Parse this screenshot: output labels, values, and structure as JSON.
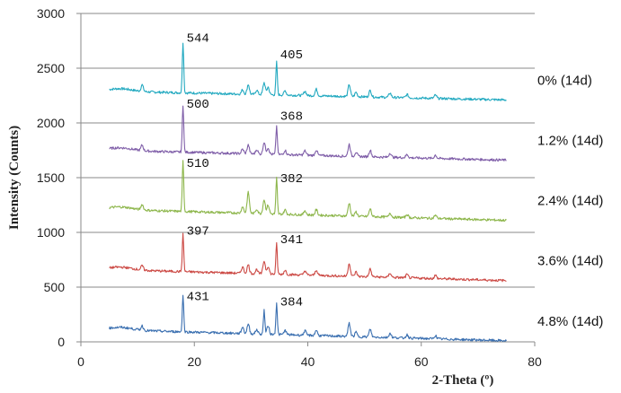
{
  "chart_data": {
    "type": "line",
    "title": "",
    "xlabel": "2-Theta (º)",
    "ylabel": "Intensity (Counts)",
    "xlim": [
      0,
      80
    ],
    "ylim": [
      0,
      3000
    ],
    "xticks": [
      "0",
      "20",
      "40",
      "60",
      "80"
    ],
    "yticks": [
      "0",
      "500",
      "1000",
      "1500",
      "2000",
      "2500",
      "3000"
    ],
    "grid": "horizontal",
    "legend_position": "right",
    "series": [
      {
        "name": "0% (14d)",
        "color": "#22a9c0",
        "baseline": 2290,
        "end": 2210,
        "peaks": [
          [
            10.8,
            60
          ],
          [
            18.0,
            460
          ],
          [
            28.5,
            40
          ],
          [
            29.5,
            90
          ],
          [
            31.0,
            40
          ],
          [
            32.3,
            110
          ],
          [
            33.0,
            70
          ],
          [
            34.5,
            300
          ],
          [
            36.0,
            40
          ],
          [
            39.5,
            40
          ],
          [
            41.5,
            60
          ],
          [
            47.3,
            110
          ],
          [
            48.5,
            40
          ],
          [
            51.0,
            60
          ],
          [
            54.5,
            40
          ],
          [
            57.5,
            30
          ],
          [
            62.5,
            30
          ]
        ],
        "labels": [
          {
            "x": 18.0,
            "y": 2740,
            "text": "544"
          },
          {
            "x": 34.5,
            "y": 2590,
            "text": "405"
          }
        ]
      },
      {
        "name": "1.2% (14d)",
        "color": "#7f5ea8",
        "baseline": 1750,
        "end": 1660,
        "peaks": [
          [
            10.8,
            50
          ],
          [
            18.0,
            430
          ],
          [
            28.5,
            40
          ],
          [
            29.5,
            80
          ],
          [
            31.0,
            40
          ],
          [
            32.3,
            110
          ],
          [
            33.0,
            60
          ],
          [
            34.5,
            260
          ],
          [
            36.0,
            40
          ],
          [
            39.5,
            40
          ],
          [
            41.5,
            50
          ],
          [
            47.3,
            110
          ],
          [
            48.5,
            40
          ],
          [
            51.0,
            60
          ],
          [
            54.5,
            40
          ],
          [
            57.5,
            30
          ],
          [
            62.5,
            30
          ]
        ],
        "labels": [
          {
            "x": 18.0,
            "y": 2140,
            "text": "500"
          },
          {
            "x": 34.5,
            "y": 2030,
            "text": "368"
          }
        ]
      },
      {
        "name": "2.4% (14d)",
        "color": "#8db64b",
        "baseline": 1210,
        "end": 1110,
        "peaks": [
          [
            10.8,
            50
          ],
          [
            18.0,
            460
          ],
          [
            28.5,
            60
          ],
          [
            29.5,
            190
          ],
          [
            31.0,
            40
          ],
          [
            32.3,
            130
          ],
          [
            33.0,
            80
          ],
          [
            34.5,
            330
          ],
          [
            36.0,
            40
          ],
          [
            39.5,
            40
          ],
          [
            41.5,
            50
          ],
          [
            47.3,
            120
          ],
          [
            48.5,
            40
          ],
          [
            51.0,
            70
          ],
          [
            54.5,
            40
          ],
          [
            57.5,
            30
          ],
          [
            62.5,
            30
          ]
        ],
        "labels": [
          {
            "x": 18.0,
            "y": 1600,
            "text": "510"
          },
          {
            "x": 34.5,
            "y": 1460,
            "text": "382"
          }
        ]
      },
      {
        "name": "3.6% (14d)",
        "color": "#cc4a45",
        "baseline": 660,
        "end": 560,
        "peaks": [
          [
            10.8,
            40
          ],
          [
            18.0,
            340
          ],
          [
            28.5,
            60
          ],
          [
            29.5,
            80
          ],
          [
            31.0,
            40
          ],
          [
            32.3,
            120
          ],
          [
            33.0,
            70
          ],
          [
            34.5,
            280
          ],
          [
            36.0,
            40
          ],
          [
            39.5,
            40
          ],
          [
            41.5,
            50
          ],
          [
            47.3,
            120
          ],
          [
            48.5,
            40
          ],
          [
            51.0,
            70
          ],
          [
            54.5,
            40
          ],
          [
            57.5,
            30
          ],
          [
            62.5,
            30
          ]
        ],
        "labels": [
          {
            "x": 18.0,
            "y": 980,
            "text": "397"
          },
          {
            "x": 34.5,
            "y": 900,
            "text": "341"
          }
        ]
      },
      {
        "name": "4.8% (14d)",
        "color": "#3a6fb0",
        "baseline": 110,
        "end": 10,
        "peaks": [
          [
            10.8,
            40
          ],
          [
            18.0,
            330
          ],
          [
            28.5,
            60
          ],
          [
            29.5,
            90
          ],
          [
            31.0,
            40
          ],
          [
            32.3,
            220
          ],
          [
            33.0,
            80
          ],
          [
            34.5,
            290
          ],
          [
            36.0,
            40
          ],
          [
            39.5,
            40
          ],
          [
            41.5,
            50
          ],
          [
            47.3,
            120
          ],
          [
            48.5,
            40
          ],
          [
            51.0,
            70
          ],
          [
            54.5,
            40
          ],
          [
            57.5,
            30
          ],
          [
            62.5,
            30
          ]
        ],
        "labels": [
          {
            "x": 18.0,
            "y": 380,
            "text": "431"
          },
          {
            "x": 34.5,
            "y": 330,
            "text": "384"
          }
        ]
      }
    ]
  }
}
